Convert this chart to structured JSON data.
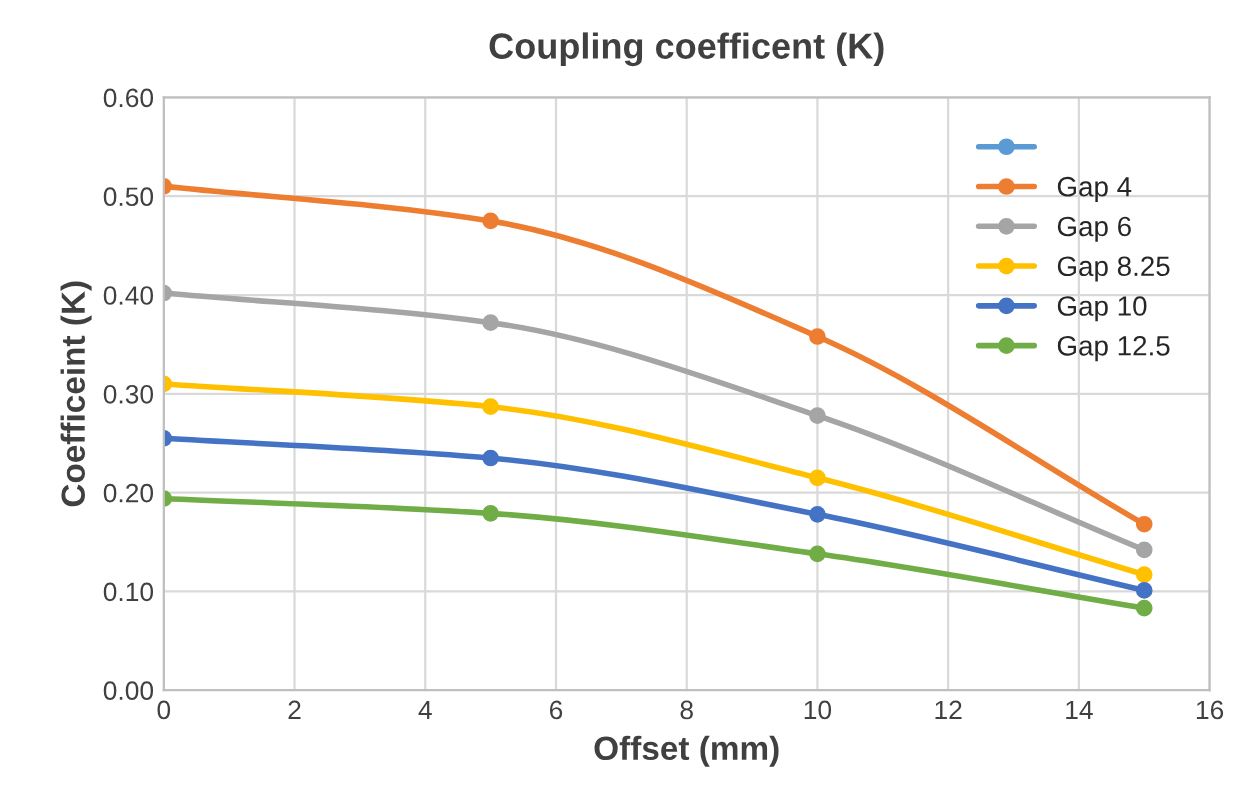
{
  "chart_data": {
    "type": "line",
    "title": "Coupling coefficent (K)",
    "xlabel": "Offset (mm)",
    "ylabel": "Coefficeint (K)",
    "x": [
      0,
      5,
      10,
      15
    ],
    "series": [
      {
        "color": "#5b9bd5",
        "values": [
          null,
          null,
          null,
          null
        ]
      },
      {
        "name": "Gap 4",
        "color": "#ed7d31",
        "values": [
          0.51,
          0.475,
          0.358,
          0.168
        ]
      },
      {
        "name": "Gap 6",
        "color": "#a5a5a5",
        "values": [
          0.402,
          0.372,
          0.278,
          0.142
        ]
      },
      {
        "name": "Gap 8.25",
        "color": "#ffc000",
        "values": [
          0.31,
          0.287,
          0.215,
          0.117
        ]
      },
      {
        "name": "Gap 10",
        "color": "#4472c4",
        "values": [
          0.255,
          0.235,
          0.178,
          0.101
        ]
      },
      {
        "name": "Gap 12.5",
        "color": "#70ad47",
        "values": [
          0.194,
          0.179,
          0.138,
          0.083
        ]
      }
    ],
    "xlim": [
      0,
      16
    ],
    "xticks": [
      0,
      2,
      4,
      6,
      8,
      10,
      12,
      14,
      16
    ],
    "ylim": [
      0,
      0.6
    ],
    "yticks": [
      {
        "value": 0,
        "label": "0.00"
      },
      {
        "value": 0.1,
        "label": "0.10"
      },
      {
        "value": 0.2,
        "label": "0.20"
      },
      {
        "value": 0.3,
        "label": "0.30"
      },
      {
        "value": 0.4,
        "label": "0.40"
      },
      {
        "value": 0.5,
        "label": "0.50"
      },
      {
        "value": 0.6,
        "label": "0.60"
      }
    ],
    "grid": true,
    "legend": "top right",
    "marker": "circle",
    "line_style": "solid"
  }
}
